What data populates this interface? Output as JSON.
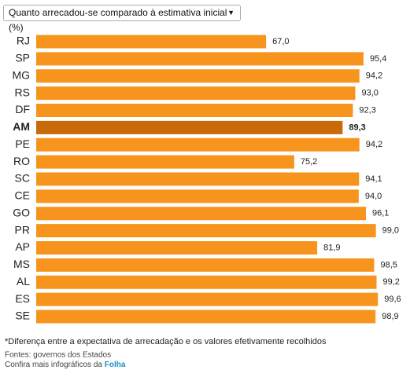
{
  "chart_data": {
    "type": "hbar",
    "selector": "Quanto arrecadou-se comparado à estimativa inicial (%)",
    "categories": [
      "RJ",
      "SP",
      "MG",
      "RS",
      "DF",
      "AM",
      "PE",
      "RO",
      "SC",
      "CE",
      "GO",
      "PR",
      "AP",
      "MS",
      "AL",
      "ES",
      "SE"
    ],
    "values": [
      67.0,
      95.4,
      94.2,
      93.0,
      92.3,
      89.3,
      94.2,
      75.2,
      94.1,
      94.0,
      96.1,
      99.0,
      81.9,
      98.5,
      99.2,
      99.6,
      98.9
    ],
    "value_labels": [
      "67,0",
      "95,4",
      "94,2",
      "93,0",
      "92,3",
      "89,3",
      "94,2",
      "75,2",
      "94,1",
      "94,0",
      "96,1",
      "99,0",
      "81,9",
      "98,5",
      "99,2",
      "99,6",
      "98,9"
    ],
    "color": "#f7941d",
    "colors": [
      "#f7941d",
      "#f7941d",
      "#f7941d",
      "#f7941d",
      "#f7941d",
      "#c8690a",
      "#f7941d",
      "#f7941d",
      "#f7941d",
      "#f7941d",
      "#f7941d",
      "#f7941d",
      "#f7941d",
      "#f7941d",
      "#f7941d",
      "#f7941d",
      "#f7941d"
    ],
    "footnote": "*Diferença entre a expectativa de arrecadação e os valores efetivamente recolhidos",
    "source": "Fontes: governos dos Estados",
    "more": "Confira mais infográficos da",
    "link": "Folha"
  }
}
